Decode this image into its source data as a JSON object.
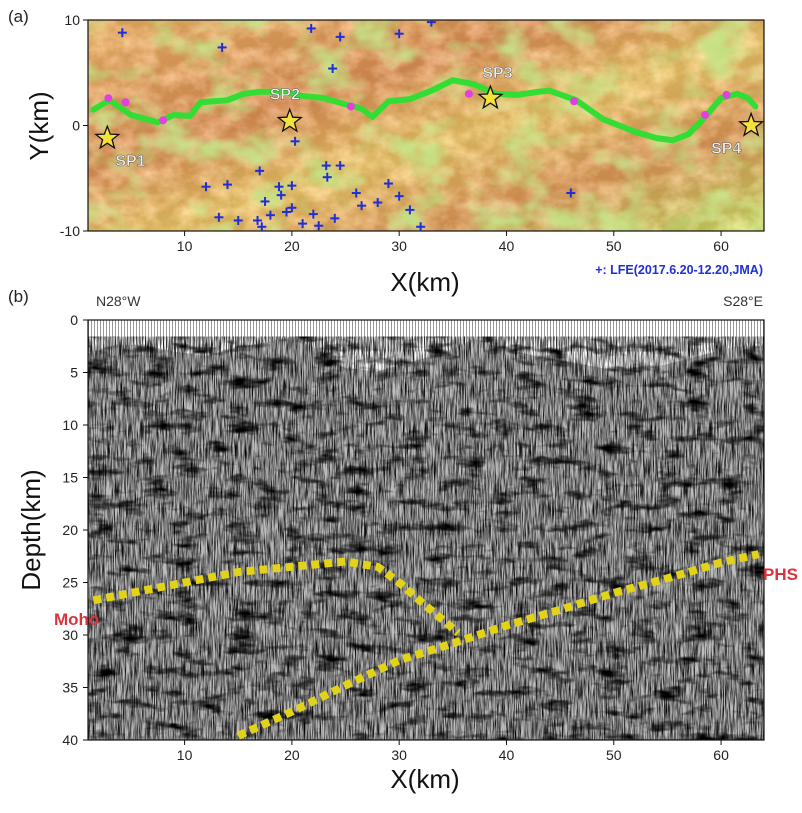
{
  "panels": {
    "a": {
      "label": "(a)",
      "xlabel": "X(km)",
      "ylabel": "Y(km)",
      "x_ticks": [
        "10",
        "20",
        "30",
        "40",
        "50",
        "60"
      ],
      "y_ticks": [
        "10",
        "0",
        "-10"
      ],
      "xlim": [
        1,
        64
      ],
      "ylim": [
        -10,
        10
      ],
      "legend_text": "+: LFE(2017.6.20-12.20,JMA)",
      "shot_points": [
        {
          "name": "SP1",
          "x": 2.8,
          "y": -1.2
        },
        {
          "name": "SP2",
          "x": 19.8,
          "y": 0.4
        },
        {
          "name": "SP3",
          "x": 38.5,
          "y": 2.6
        },
        {
          "name": "SP4",
          "x": 62.8,
          "y": 0.0
        }
      ]
    },
    "b": {
      "label": "(b)",
      "left_azimuth": "N28°W",
      "right_azimuth": "S28°E",
      "xlabel": "X(km)",
      "ylabel": "Depth(km)",
      "x_ticks": [
        "10",
        "20",
        "30",
        "40",
        "50",
        "60"
      ],
      "y_ticks": [
        "0",
        "5",
        "10",
        "15",
        "20",
        "25",
        "30",
        "35",
        "40"
      ],
      "xlim": [
        1,
        64
      ],
      "ylim": [
        0,
        40
      ],
      "moho_label": "Moho",
      "phs_label": "PHS"
    }
  },
  "chart_data": [
    {
      "type": "scatter",
      "title": "",
      "xlabel": "X(km)",
      "ylabel": "Y(km)",
      "xlim": [
        1,
        64
      ],
      "ylim": [
        -10,
        10
      ],
      "series": [
        {
          "name": "+: LFE(2017.6.20-12.20,JMA)",
          "color": "#1f2fd6",
          "x": [
            4.2,
            13.5,
            21.8,
            24.5,
            30.0,
            33.0,
            23.8,
            12.0,
            17.0,
            20.0,
            23.2,
            24.5,
            29.0,
            30.0,
            14.0,
            13.2,
            17.5,
            19.0,
            20.0,
            22.0,
            23.3,
            26.0,
            28.0,
            31.0,
            15.0,
            18.0,
            19.5,
            21.0,
            22.5,
            32.0,
            46.0,
            20.3,
            18.8,
            17.2,
            16.8,
            24.0,
            26.5
          ],
          "y": [
            8.8,
            7.4,
            9.2,
            8.4,
            8.7,
            9.8,
            5.4,
            -5.8,
            -4.3,
            -5.7,
            -3.8,
            -3.8,
            -5.5,
            -6.7,
            -5.6,
            -8.7,
            -7.2,
            -6.6,
            -7.8,
            -8.4,
            -4.9,
            -6.4,
            -7.3,
            -8.0,
            -9.0,
            -8.5,
            -8.2,
            -9.3,
            -9.5,
            -9.6,
            -6.4,
            -1.5,
            -5.8,
            -9.6,
            -9.0,
            -8.8,
            -7.6
          ]
        },
        {
          "name": "receiver line",
          "color": "#33dd33",
          "x": [
            1.5,
            3,
            5,
            7.5,
            9,
            10.5,
            11.5,
            14,
            15.5,
            17,
            19,
            21,
            23,
            25,
            26.5,
            27.5,
            29,
            31,
            33,
            35,
            37,
            39,
            41,
            43,
            44,
            46.5,
            49,
            52,
            54,
            55.5,
            57,
            58.5,
            60,
            61.5,
            62.5,
            63.2
          ],
          "y": [
            1.5,
            2.4,
            1.0,
            0.3,
            1.0,
            0.9,
            2.2,
            2.4,
            3.0,
            3.2,
            3.2,
            2.8,
            2.6,
            2.0,
            1.6,
            0.8,
            2.3,
            2.5,
            3.3,
            4.3,
            3.9,
            3.0,
            2.9,
            3.2,
            3.3,
            2.4,
            0.6,
            -0.6,
            -1.2,
            -1.4,
            -0.8,
            0.8,
            2.6,
            3.0,
            2.6,
            1.8
          ]
        }
      ]
    },
    {
      "type": "line",
      "title": "",
      "xlabel": "X(km)",
      "ylabel": "Depth(km)",
      "xlim": [
        1,
        64
      ],
      "ylim": [
        40,
        0
      ],
      "series": [
        {
          "name": "Moho",
          "color": "#e2d21a",
          "x": [
            1.5,
            5,
            10,
            15,
            20,
            23,
            25,
            28,
            30,
            32,
            34,
            35.5
          ],
          "y": [
            26.7,
            26.0,
            25.0,
            24.0,
            23.5,
            23.2,
            23.0,
            23.5,
            25.0,
            26.8,
            28.5,
            29.8
          ]
        },
        {
          "name": "PHS",
          "color": "#e2d21a",
          "x": [
            15,
            20,
            25,
            30,
            35,
            40,
            45,
            50,
            55,
            60,
            63.5
          ],
          "y": [
            39.6,
            37.3,
            34.8,
            32.4,
            30.8,
            29.1,
            27.6,
            26.0,
            24.6,
            23.1,
            22.3
          ]
        }
      ]
    }
  ]
}
